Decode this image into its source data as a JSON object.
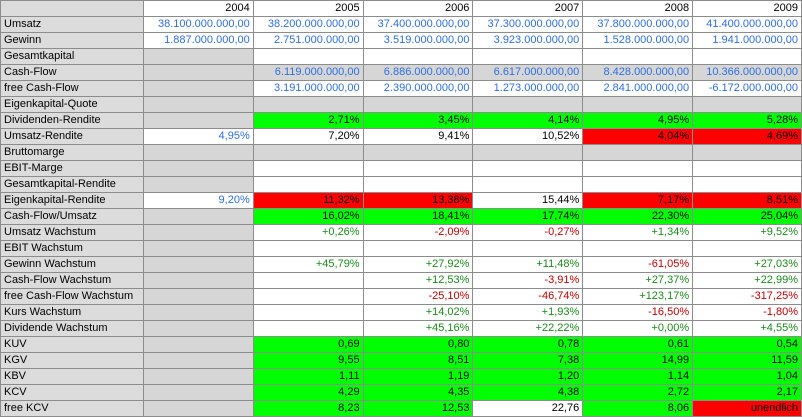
{
  "table": {
    "years": [
      "2004",
      "2005",
      "2006",
      "2007",
      "2008",
      "2009"
    ],
    "rows": [
      {
        "label": "Umsatz",
        "cells": [
          {
            "v": "38.100.000.000,00",
            "c": "blue",
            "b": "w"
          },
          {
            "v": "38.200.000.000,00",
            "c": "blue",
            "b": "w"
          },
          {
            "v": "37.400.000.000,00",
            "c": "blue",
            "b": "w"
          },
          {
            "v": "37.300.000.000,00",
            "c": "blue",
            "b": "w"
          },
          {
            "v": "37.800.000.000,00",
            "c": "blue",
            "b": "w"
          },
          {
            "v": "41.400.000.000,00",
            "c": "blue",
            "b": "w"
          }
        ]
      },
      {
        "label": "Gewinn",
        "cells": [
          {
            "v": "1.887.000.000,00",
            "c": "blue",
            "b": "w"
          },
          {
            "v": "2.751.000.000,00",
            "c": "blue",
            "b": "w"
          },
          {
            "v": "3.519.000.000,00",
            "c": "blue",
            "b": "w"
          },
          {
            "v": "3.923.000.000,00",
            "c": "blue",
            "b": "w"
          },
          {
            "v": "1.528.000.000,00",
            "c": "blue",
            "b": "w"
          },
          {
            "v": "1.941.000.000,00",
            "c": "blue",
            "b": "w"
          }
        ]
      },
      {
        "label": "Gesamtkapital",
        "cells": [
          {
            "v": "",
            "c": "black",
            "b": "g"
          },
          {
            "v": "",
            "c": "black",
            "b": "w"
          },
          {
            "v": "",
            "c": "black",
            "b": "w"
          },
          {
            "v": "",
            "c": "black",
            "b": "w"
          },
          {
            "v": "",
            "c": "black",
            "b": "w"
          },
          {
            "v": "",
            "c": "black",
            "b": "w"
          }
        ]
      },
      {
        "label": "Cash-Flow",
        "cells": [
          {
            "v": "",
            "c": "black",
            "b": "g"
          },
          {
            "v": "6.119.000.000,00",
            "c": "blue",
            "b": "g"
          },
          {
            "v": "6.886.000.000,00",
            "c": "blue",
            "b": "g"
          },
          {
            "v": "6.617.000.000,00",
            "c": "blue",
            "b": "g"
          },
          {
            "v": "8.428.000.000,00",
            "c": "blue",
            "b": "g"
          },
          {
            "v": "10.366.000.000,00",
            "c": "blue",
            "b": "g"
          }
        ]
      },
      {
        "label": "free Cash-Flow",
        "cells": [
          {
            "v": "",
            "c": "black",
            "b": "g"
          },
          {
            "v": "3.191.000.000,00",
            "c": "blue",
            "b": "w"
          },
          {
            "v": "2.390.000.000,00",
            "c": "blue",
            "b": "w"
          },
          {
            "v": "1.273.000.000,00",
            "c": "blue",
            "b": "w"
          },
          {
            "v": "2.841.000.000,00",
            "c": "blue",
            "b": "w"
          },
          {
            "v": "-6.172.000.000,00",
            "c": "blue",
            "b": "w"
          }
        ]
      },
      {
        "label": "Eigenkapital-Quote",
        "cells": [
          {
            "v": "",
            "c": "black",
            "b": "g"
          },
          {
            "v": "",
            "c": "black",
            "b": "g"
          },
          {
            "v": "",
            "c": "black",
            "b": "g"
          },
          {
            "v": "",
            "c": "black",
            "b": "g"
          },
          {
            "v": "",
            "c": "black",
            "b": "g"
          },
          {
            "v": "",
            "c": "black",
            "b": "g"
          }
        ]
      },
      {
        "label": "Dividenden-Rendite",
        "cells": [
          {
            "v": "",
            "c": "black",
            "b": "g"
          },
          {
            "v": "2,71%",
            "c": "black",
            "b": "lime"
          },
          {
            "v": "3,45%",
            "c": "black",
            "b": "lime"
          },
          {
            "v": "4,14%",
            "c": "black",
            "b": "lime"
          },
          {
            "v": "4,95%",
            "c": "black",
            "b": "lime"
          },
          {
            "v": "5,28%",
            "c": "black",
            "b": "lime"
          }
        ]
      },
      {
        "label": "Umsatz-Rendite",
        "cells": [
          {
            "v": "4,95%",
            "c": "blue",
            "b": "w"
          },
          {
            "v": "7,20%",
            "c": "black",
            "b": "w"
          },
          {
            "v": "9,41%",
            "c": "black",
            "b": "w"
          },
          {
            "v": "10,52%",
            "c": "black",
            "b": "w"
          },
          {
            "v": "4,04%",
            "c": "black",
            "b": "red"
          },
          {
            "v": "4,69%",
            "c": "black",
            "b": "red"
          }
        ]
      },
      {
        "label": "Bruttomarge",
        "cells": [
          {
            "v": "",
            "c": "black",
            "b": "g"
          },
          {
            "v": "",
            "c": "black",
            "b": "g"
          },
          {
            "v": "",
            "c": "black",
            "b": "g"
          },
          {
            "v": "",
            "c": "black",
            "b": "g"
          },
          {
            "v": "",
            "c": "black",
            "b": "g"
          },
          {
            "v": "",
            "c": "black",
            "b": "g"
          }
        ]
      },
      {
        "label": "EBIT-Marge",
        "cells": [
          {
            "v": "",
            "c": "black",
            "b": "g"
          },
          {
            "v": "",
            "c": "black",
            "b": "w"
          },
          {
            "v": "",
            "c": "black",
            "b": "w"
          },
          {
            "v": "",
            "c": "black",
            "b": "w"
          },
          {
            "v": "",
            "c": "black",
            "b": "w"
          },
          {
            "v": "",
            "c": "black",
            "b": "w"
          }
        ]
      },
      {
        "label": "Gesamtkapital-Rendite",
        "cells": [
          {
            "v": "",
            "c": "black",
            "b": "g"
          },
          {
            "v": "",
            "c": "black",
            "b": "w"
          },
          {
            "v": "",
            "c": "black",
            "b": "w"
          },
          {
            "v": "",
            "c": "black",
            "b": "w"
          },
          {
            "v": "",
            "c": "black",
            "b": "w"
          },
          {
            "v": "",
            "c": "black",
            "b": "w"
          }
        ]
      },
      {
        "label": "Eigenkapital-Rendite",
        "cells": [
          {
            "v": "9,20%",
            "c": "blue",
            "b": "w"
          },
          {
            "v": "11,32%",
            "c": "black",
            "b": "red"
          },
          {
            "v": "13,38%",
            "c": "black",
            "b": "red"
          },
          {
            "v": "15,44%",
            "c": "black",
            "b": "w"
          },
          {
            "v": "7,17%",
            "c": "black",
            "b": "red"
          },
          {
            "v": "8,51%",
            "c": "black",
            "b": "red"
          }
        ]
      },
      {
        "label": "Cash-Flow/Umsatz",
        "cells": [
          {
            "v": "",
            "c": "black",
            "b": "g"
          },
          {
            "v": "16,02%",
            "c": "black",
            "b": "lime"
          },
          {
            "v": "18,41%",
            "c": "black",
            "b": "lime"
          },
          {
            "v": "17,74%",
            "c": "black",
            "b": "lime"
          },
          {
            "v": "22,30%",
            "c": "black",
            "b": "lime"
          },
          {
            "v": "25,04%",
            "c": "black",
            "b": "lime"
          }
        ]
      },
      {
        "label": "Umsatz Wachstum",
        "cells": [
          {
            "v": "",
            "c": "black",
            "b": "g"
          },
          {
            "v": "+0,26%",
            "c": "green",
            "b": "w"
          },
          {
            "v": "-2,09%",
            "c": "red",
            "b": "w"
          },
          {
            "v": "-0,27%",
            "c": "red",
            "b": "w"
          },
          {
            "v": "+1,34%",
            "c": "green",
            "b": "w"
          },
          {
            "v": "+9,52%",
            "c": "green",
            "b": "w"
          }
        ]
      },
      {
        "label": "EBIT Wachstum",
        "cells": [
          {
            "v": "",
            "c": "black",
            "b": "g"
          },
          {
            "v": "",
            "c": "black",
            "b": "w"
          },
          {
            "v": "",
            "c": "black",
            "b": "w"
          },
          {
            "v": "",
            "c": "black",
            "b": "w"
          },
          {
            "v": "",
            "c": "black",
            "b": "w"
          },
          {
            "v": "",
            "c": "black",
            "b": "w"
          }
        ]
      },
      {
        "label": "Gewinn Wachstum",
        "cells": [
          {
            "v": "",
            "c": "black",
            "b": "g"
          },
          {
            "v": "+45,79%",
            "c": "green",
            "b": "w"
          },
          {
            "v": "+27,92%",
            "c": "green",
            "b": "w"
          },
          {
            "v": "+11,48%",
            "c": "green",
            "b": "w"
          },
          {
            "v": "-61,05%",
            "c": "red",
            "b": "w"
          },
          {
            "v": "+27,03%",
            "c": "green",
            "b": "w"
          }
        ]
      },
      {
        "label": "Cash-Flow Wachstum",
        "cells": [
          {
            "v": "",
            "c": "black",
            "b": "g"
          },
          {
            "v": "",
            "c": "black",
            "b": "w"
          },
          {
            "v": "+12,53%",
            "c": "green",
            "b": "w"
          },
          {
            "v": "-3,91%",
            "c": "red",
            "b": "w"
          },
          {
            "v": "+27,37%",
            "c": "green",
            "b": "w"
          },
          {
            "v": "+22,99%",
            "c": "green",
            "b": "w"
          }
        ]
      },
      {
        "label": "free Cash-Flow Wachstum",
        "cells": [
          {
            "v": "",
            "c": "black",
            "b": "g"
          },
          {
            "v": "",
            "c": "black",
            "b": "w"
          },
          {
            "v": "-25,10%",
            "c": "red",
            "b": "w"
          },
          {
            "v": "-46,74%",
            "c": "red",
            "b": "w"
          },
          {
            "v": "+123,17%",
            "c": "green",
            "b": "w"
          },
          {
            "v": "-317,25%",
            "c": "red",
            "b": "w"
          }
        ]
      },
      {
        "label": "Kurs Wachstum",
        "cells": [
          {
            "v": "",
            "c": "black",
            "b": "g"
          },
          {
            "v": "",
            "c": "black",
            "b": "w"
          },
          {
            "v": "+14,02%",
            "c": "green",
            "b": "w"
          },
          {
            "v": "+1,93%",
            "c": "green",
            "b": "w"
          },
          {
            "v": "-16,50%",
            "c": "red",
            "b": "w"
          },
          {
            "v": "-1,80%",
            "c": "red",
            "b": "w"
          }
        ]
      },
      {
        "label": "Dividende Wachstum",
        "cells": [
          {
            "v": "",
            "c": "black",
            "b": "g"
          },
          {
            "v": "",
            "c": "black",
            "b": "w"
          },
          {
            "v": "+45,16%",
            "c": "green",
            "b": "w"
          },
          {
            "v": "+22,22%",
            "c": "green",
            "b": "w"
          },
          {
            "v": "+0,00%",
            "c": "green",
            "b": "w"
          },
          {
            "v": "+4,55%",
            "c": "green",
            "b": "w"
          }
        ]
      },
      {
        "label": "KUV",
        "cells": [
          {
            "v": "",
            "c": "black",
            "b": "g"
          },
          {
            "v": "0,69",
            "c": "black",
            "b": "lime"
          },
          {
            "v": "0,80",
            "c": "black",
            "b": "lime"
          },
          {
            "v": "0,78",
            "c": "black",
            "b": "lime"
          },
          {
            "v": "0,61",
            "c": "black",
            "b": "lime"
          },
          {
            "v": "0,54",
            "c": "black",
            "b": "lime"
          }
        ]
      },
      {
        "label": "KGV",
        "cells": [
          {
            "v": "",
            "c": "black",
            "b": "g"
          },
          {
            "v": "9,55",
            "c": "black",
            "b": "lime"
          },
          {
            "v": "8,51",
            "c": "black",
            "b": "lime"
          },
          {
            "v": "7,38",
            "c": "black",
            "b": "lime"
          },
          {
            "v": "14,99",
            "c": "black",
            "b": "lime"
          },
          {
            "v": "11,59",
            "c": "black",
            "b": "lime"
          }
        ]
      },
      {
        "label": "KBV",
        "cells": [
          {
            "v": "",
            "c": "black",
            "b": "g"
          },
          {
            "v": "1,11",
            "c": "black",
            "b": "lime"
          },
          {
            "v": "1,19",
            "c": "black",
            "b": "lime"
          },
          {
            "v": "1,20",
            "c": "black",
            "b": "lime"
          },
          {
            "v": "1,14",
            "c": "black",
            "b": "lime"
          },
          {
            "v": "1,04",
            "c": "black",
            "b": "lime"
          }
        ]
      },
      {
        "label": "KCV",
        "cells": [
          {
            "v": "",
            "c": "black",
            "b": "g"
          },
          {
            "v": "4,29",
            "c": "black",
            "b": "lime"
          },
          {
            "v": "4,35",
            "c": "black",
            "b": "lime"
          },
          {
            "v": "4,38",
            "c": "black",
            "b": "lime"
          },
          {
            "v": "2,72",
            "c": "black",
            "b": "lime"
          },
          {
            "v": "2,17",
            "c": "black",
            "b": "lime"
          }
        ]
      },
      {
        "label": "free KCV",
        "cells": [
          {
            "v": "",
            "c": "black",
            "b": "g"
          },
          {
            "v": "8,23",
            "c": "black",
            "b": "lime"
          },
          {
            "v": "12,53",
            "c": "black",
            "b": "lime"
          },
          {
            "v": "22,76",
            "c": "black",
            "b": "w"
          },
          {
            "v": "8,06",
            "c": "black",
            "b": "lime"
          },
          {
            "v": "unendlich",
            "c": "black",
            "b": "red"
          }
        ]
      }
    ]
  },
  "colors": {
    "label_bg": "#dcdcdc",
    "empty_bg": "#d6d6d6",
    "good_bg": "#00ff00",
    "bad_bg": "#ff0000",
    "input_text": "#2f6fdf",
    "positive_text": "#1a8a1a",
    "negative_text": "#c00000"
  }
}
